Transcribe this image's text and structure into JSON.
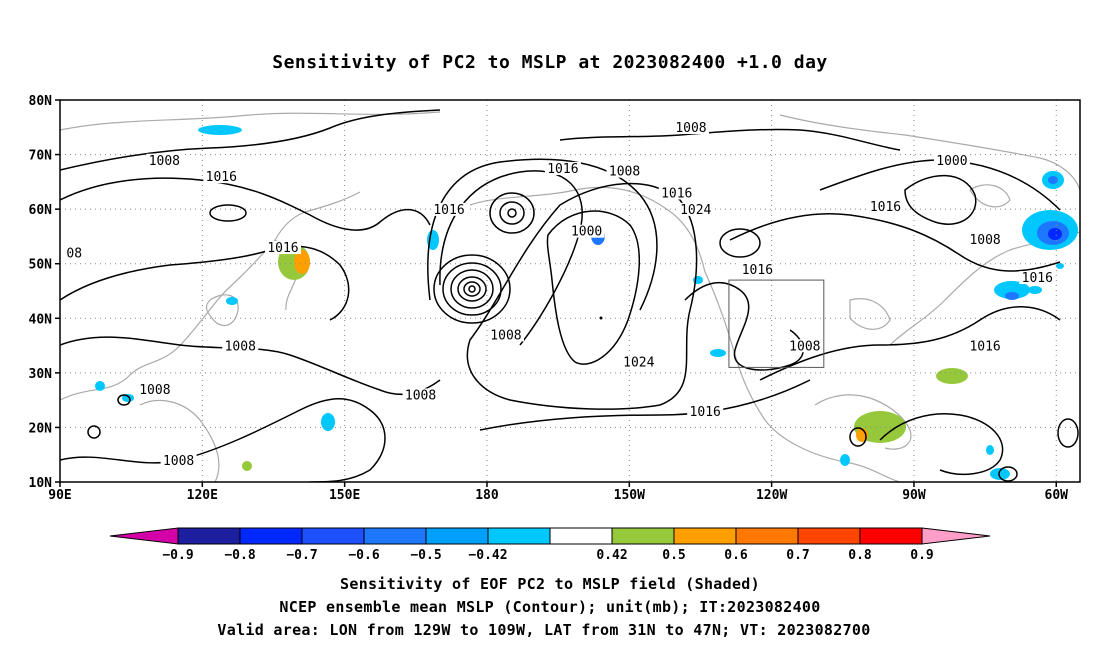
{
  "title": "Sensitivity of PC2 to MSLP at 2023082400 +1.0 day",
  "map": {
    "lon_range": [
      90,
      305
    ],
    "lat_range": [
      10,
      80
    ],
    "lat_ticks": [
      {
        "value": 80,
        "label": "80N"
      },
      {
        "value": 70,
        "label": "70N"
      },
      {
        "value": 60,
        "label": "60N"
      },
      {
        "value": 50,
        "label": "50N"
      },
      {
        "value": 40,
        "label": "40N"
      },
      {
        "value": 30,
        "label": "30N"
      },
      {
        "value": 20,
        "label": "20N"
      },
      {
        "value": 10,
        "label": "10N"
      }
    ],
    "lon_ticks": [
      {
        "value": 90,
        "label": "90E"
      },
      {
        "value": 120,
        "label": "120E"
      },
      {
        "value": 150,
        "label": "150E"
      },
      {
        "value": 180,
        "label": "180"
      },
      {
        "value": 210,
        "label": "150W"
      },
      {
        "value": 240,
        "label": "120W"
      },
      {
        "value": 270,
        "label": "90W"
      },
      {
        "value": 300,
        "label": "60W"
      }
    ],
    "grid": "dotted",
    "valid_area_box": {
      "lon": [
        231,
        251
      ],
      "lat": [
        31,
        47
      ]
    },
    "contour_labels": [
      {
        "text": "1008",
        "lon": 112,
        "lat": 68.5
      },
      {
        "text": "1016",
        "lon": 124,
        "lat": 65.5
      },
      {
        "text": "08",
        "lon": 93,
        "lat": 51.5
      },
      {
        "text": "1016",
        "lon": 137,
        "lat": 52.5
      },
      {
        "text": "1016",
        "lon": 172,
        "lat": 59.5
      },
      {
        "text": "1016",
        "lon": 196,
        "lat": 67
      },
      {
        "text": "1008",
        "lon": 209,
        "lat": 66.5
      },
      {
        "text": "1000",
        "lon": 201,
        "lat": 55.5
      },
      {
        "text": "1016",
        "lon": 220,
        "lat": 62.5
      },
      {
        "text": "1024",
        "lon": 224,
        "lat": 59.5
      },
      {
        "text": "1008",
        "lon": 223,
        "lat": 74.5
      },
      {
        "text": "1000",
        "lon": 278,
        "lat": 68.5
      },
      {
        "text": "1016",
        "lon": 264,
        "lat": 60
      },
      {
        "text": "1008",
        "lon": 285,
        "lat": 54
      },
      {
        "text": "1016",
        "lon": 296,
        "lat": 47
      },
      {
        "text": "1016",
        "lon": 237,
        "lat": 48.5
      },
      {
        "text": "1008",
        "lon": 247,
        "lat": 34.5
      },
      {
        "text": "1016",
        "lon": 285,
        "lat": 34.5
      },
      {
        "text": "1024",
        "lon": 212,
        "lat": 31.5
      },
      {
        "text": "1016",
        "lon": 226,
        "lat": 22.5
      },
      {
        "text": "1008",
        "lon": 184,
        "lat": 36.5
      },
      {
        "text": "1008",
        "lon": 128,
        "lat": 34.5
      },
      {
        "text": "1008",
        "lon": 110,
        "lat": 26.5
      },
      {
        "text": "1008",
        "lon": 166,
        "lat": 25.5
      },
      {
        "text": "1008",
        "lon": 115,
        "lat": 13.5
      }
    ]
  },
  "colorbar": {
    "labels": [
      "−0.9",
      "−0.8",
      "−0.7",
      "−0.6",
      "−0.5",
      "−0.42",
      "0.42",
      "0.5",
      "0.6",
      "0.7",
      "0.8",
      "0.9"
    ],
    "colors": [
      "#d400a8",
      "#1e1ea0",
      "#0028ff",
      "#1e50ff",
      "#1e78ff",
      "#00a0ff",
      "#00c8ff",
      "#ffffff",
      "#96c83c",
      "#ffa000",
      "#ff7800",
      "#ff4600",
      "#ff0000",
      "#ff9ec8"
    ]
  },
  "captions": [
    "Sensitivity of EOF PC2 to MSLP field (Shaded)",
    "NCEP ensemble mean MSLP (Contour); unit(mb); IT:2023082400",
    "Valid area: LON from 129W to 109W, LAT from 31N to 47N; VT: 2023082700"
  ]
}
